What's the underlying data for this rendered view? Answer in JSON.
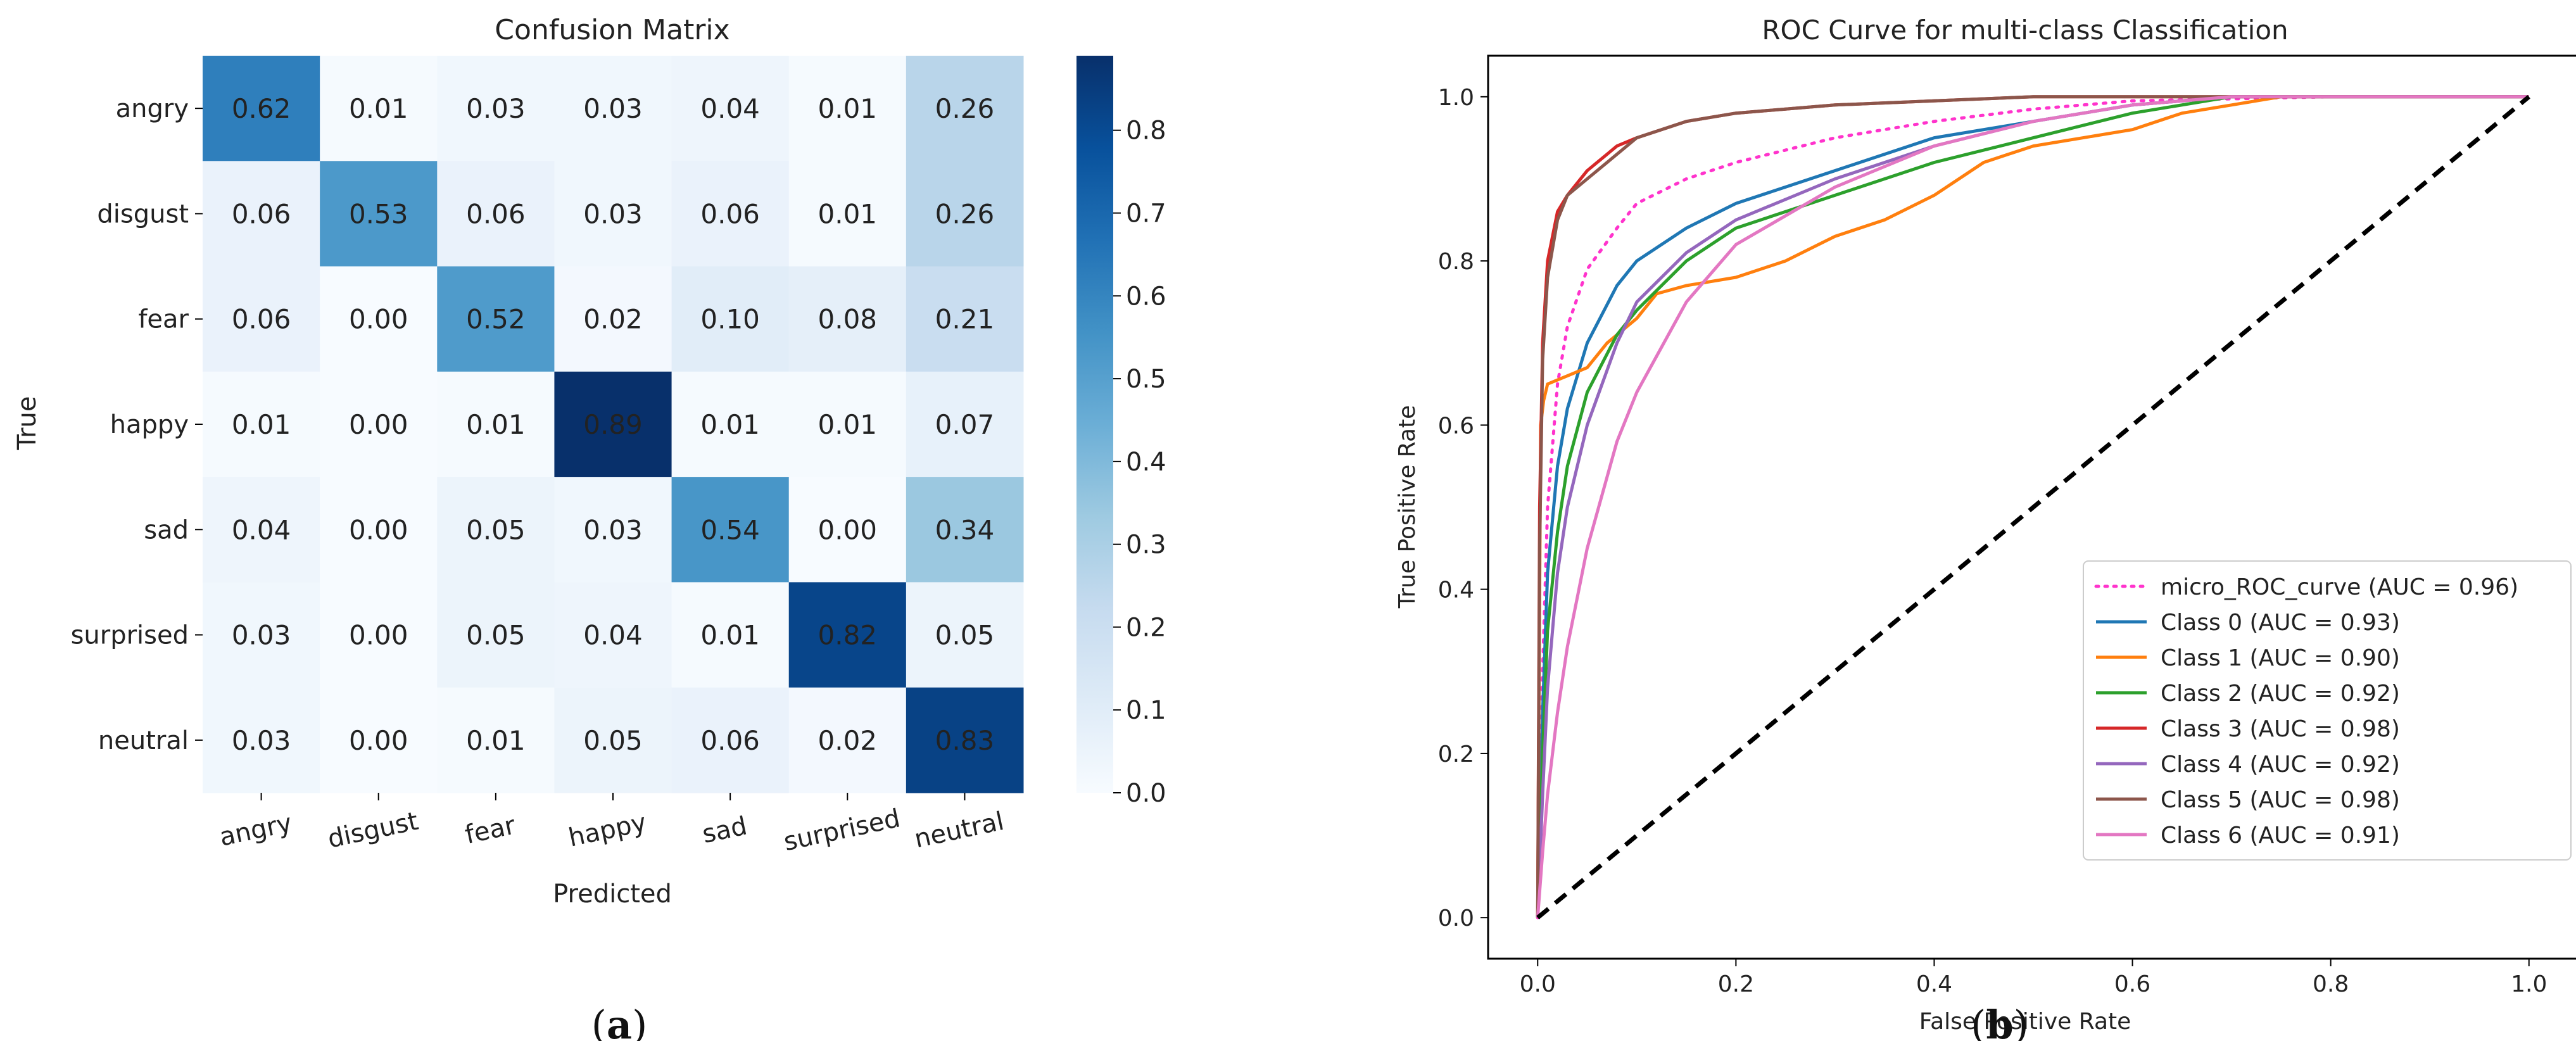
{
  "panels": {
    "a": {
      "caption_open": "(",
      "caption_letter": "a",
      "caption_close": ")"
    },
    "b": {
      "caption_open": "(",
      "caption_letter": "b",
      "caption_close": ")"
    }
  },
  "chart_data": [
    {
      "type": "heatmap",
      "title": "Confusion Matrix",
      "xlabel": "Predicted",
      "ylabel": "True",
      "row_labels": [
        "angry",
        "disgust",
        "fear",
        "happy",
        "sad",
        "surprised",
        "neutral"
      ],
      "col_labels": [
        "angry",
        "disgust",
        "fear",
        "happy",
        "sad",
        "surprised",
        "neutral"
      ],
      "values": [
        [
          0.62,
          0.01,
          0.03,
          0.03,
          0.04,
          0.01,
          0.26
        ],
        [
          0.06,
          0.53,
          0.06,
          0.03,
          0.06,
          0.01,
          0.26
        ],
        [
          0.06,
          0.0,
          0.52,
          0.02,
          0.1,
          0.08,
          0.21
        ],
        [
          0.01,
          0.0,
          0.01,
          0.89,
          0.01,
          0.01,
          0.07
        ],
        [
          0.04,
          0.0,
          0.05,
          0.03,
          0.54,
          0.0,
          0.34
        ],
        [
          0.03,
          0.0,
          0.05,
          0.04,
          0.01,
          0.82,
          0.05
        ],
        [
          0.03,
          0.0,
          0.01,
          0.05,
          0.06,
          0.02,
          0.83
        ]
      ],
      "colorbar": {
        "range": [
          0,
          0.89
        ],
        "ticks": [
          "0.0",
          "0.1",
          "0.2",
          "0.3",
          "0.4",
          "0.5",
          "0.6",
          "0.7",
          "0.8"
        ],
        "colormap": "Blues",
        "colors": [
          "#f7fbff",
          "#deebf7",
          "#c6dbef",
          "#9ecae1",
          "#6baed6",
          "#4292c6",
          "#2171b5",
          "#08519c",
          "#08306b"
        ]
      }
    },
    {
      "type": "line",
      "title": "ROC Curve for multi-class Classification",
      "xlabel": "False Positive Rate",
      "ylabel": "True Positive Rate",
      "xlim": [
        -0.05,
        1.05
      ],
      "ylim": [
        -0.05,
        1.05
      ],
      "xticks": [
        "0.0",
        "0.2",
        "0.4",
        "0.6",
        "0.8",
        "1.0"
      ],
      "yticks": [
        "0.0",
        "0.2",
        "0.4",
        "0.6",
        "0.8",
        "1.0"
      ],
      "legend_position": "lower right",
      "series": [
        {
          "name": "micro_ROC_curve (AUC = 0.96)",
          "color": "#ff33cc",
          "style": "dotted",
          "x": [
            0,
            0.005,
            0.01,
            0.02,
            0.03,
            0.05,
            0.08,
            0.1,
            0.15,
            0.2,
            0.3,
            0.4,
            0.5,
            0.6,
            0.8,
            1.0
          ],
          "y": [
            0,
            0.3,
            0.5,
            0.65,
            0.72,
            0.79,
            0.84,
            0.87,
            0.9,
            0.92,
            0.95,
            0.97,
            0.985,
            0.995,
            1.0,
            1.0
          ]
        },
        {
          "name": "Class 0 (AUC = 0.93)",
          "color": "#1f77b4",
          "style": "solid",
          "x": [
            0,
            0.005,
            0.01,
            0.02,
            0.03,
            0.05,
            0.08,
            0.1,
            0.15,
            0.2,
            0.3,
            0.4,
            0.5,
            0.6,
            0.7,
            1.0
          ],
          "y": [
            0,
            0.25,
            0.42,
            0.55,
            0.62,
            0.7,
            0.77,
            0.8,
            0.84,
            0.87,
            0.91,
            0.95,
            0.97,
            0.99,
            1.0,
            1.0
          ]
        },
        {
          "name": "Class 1 (AUC = 0.90)",
          "color": "#ff7f0e",
          "style": "solid",
          "x": [
            0,
            0.003,
            0.006,
            0.01,
            0.03,
            0.05,
            0.07,
            0.1,
            0.12,
            0.15,
            0.2,
            0.25,
            0.3,
            0.35,
            0.4,
            0.45,
            0.5,
            0.6,
            0.65,
            0.7,
            0.75,
            1.0
          ],
          "y": [
            0,
            0.6,
            0.63,
            0.65,
            0.66,
            0.67,
            0.7,
            0.73,
            0.76,
            0.77,
            0.78,
            0.8,
            0.83,
            0.85,
            0.88,
            0.92,
            0.94,
            0.96,
            0.98,
            0.99,
            1.0,
            1.0
          ]
        },
        {
          "name": "Class 2 (AUC = 0.92)",
          "color": "#2ca02c",
          "style": "solid",
          "x": [
            0,
            0.005,
            0.01,
            0.02,
            0.03,
            0.05,
            0.08,
            0.1,
            0.15,
            0.2,
            0.3,
            0.4,
            0.5,
            0.6,
            0.7,
            1.0
          ],
          "y": [
            0,
            0.2,
            0.35,
            0.47,
            0.55,
            0.64,
            0.71,
            0.74,
            0.8,
            0.84,
            0.88,
            0.92,
            0.95,
            0.98,
            1.0,
            1.0
          ]
        },
        {
          "name": "Class 3 (AUC = 0.98)",
          "color": "#d62728",
          "style": "solid",
          "x": [
            0,
            0.002,
            0.005,
            0.01,
            0.02,
            0.03,
            0.05,
            0.08,
            0.1,
            0.15,
            0.2,
            0.3,
            0.4,
            0.5,
            0.6,
            1.0
          ],
          "y": [
            0,
            0.5,
            0.7,
            0.8,
            0.86,
            0.88,
            0.91,
            0.94,
            0.95,
            0.97,
            0.98,
            0.99,
            0.995,
            1.0,
            1.0,
            1.0
          ]
        },
        {
          "name": "Class 4 (AUC = 0.92)",
          "color": "#9467bd",
          "style": "solid",
          "x": [
            0,
            0.005,
            0.01,
            0.02,
            0.03,
            0.05,
            0.08,
            0.1,
            0.15,
            0.2,
            0.3,
            0.4,
            0.5,
            0.6,
            0.7,
            1.0
          ],
          "y": [
            0,
            0.15,
            0.28,
            0.42,
            0.5,
            0.6,
            0.7,
            0.75,
            0.81,
            0.85,
            0.9,
            0.94,
            0.97,
            0.99,
            1.0,
            1.0
          ]
        },
        {
          "name": "Class 5 (AUC = 0.98)",
          "color": "#8c564b",
          "style": "solid",
          "x": [
            0,
            0.002,
            0.005,
            0.01,
            0.02,
            0.03,
            0.05,
            0.08,
            0.1,
            0.15,
            0.2,
            0.3,
            0.4,
            0.5,
            0.6,
            1.0
          ],
          "y": [
            0,
            0.45,
            0.68,
            0.78,
            0.85,
            0.88,
            0.9,
            0.93,
            0.95,
            0.97,
            0.98,
            0.99,
            0.995,
            1.0,
            1.0,
            1.0
          ]
        },
        {
          "name": "Class 6 (AUC = 0.91)",
          "color": "#e377c2",
          "style": "solid",
          "x": [
            0,
            0.005,
            0.01,
            0.02,
            0.03,
            0.05,
            0.08,
            0.1,
            0.15,
            0.2,
            0.3,
            0.4,
            0.5,
            0.6,
            0.7,
            1.0
          ],
          "y": [
            0,
            0.08,
            0.15,
            0.25,
            0.33,
            0.45,
            0.58,
            0.64,
            0.75,
            0.82,
            0.89,
            0.94,
            0.97,
            0.99,
            1.0,
            1.0
          ]
        },
        {
          "name": "",
          "color": "#000000",
          "style": "dashed",
          "x": [
            0,
            1
          ],
          "y": [
            0,
            1
          ]
        }
      ]
    }
  ]
}
